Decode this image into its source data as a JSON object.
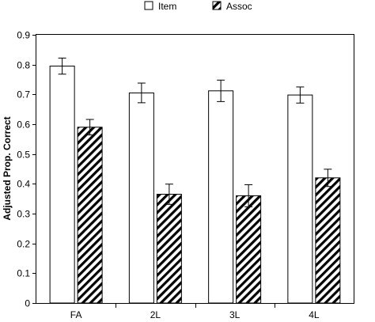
{
  "chart_data": {
    "type": "bar",
    "title": "",
    "xlabel": "",
    "ylabel": "Adjusted Prop. Correct",
    "ylim": [
      0,
      0.9
    ],
    "yticks": [
      "0",
      "0.1",
      "0.2",
      "0.3",
      "0.4",
      "0.5",
      "0.6",
      "0.7",
      "0.8",
      "0.9"
    ],
    "grid": false,
    "legend_position": "top-center",
    "categories": [
      "FA",
      "2L",
      "3L",
      "4L"
    ],
    "series": [
      {
        "name": "Item",
        "values": [
          0.795,
          0.705,
          0.712,
          0.698
        ],
        "errors": [
          0.027,
          0.033,
          0.036,
          0.027
        ],
        "fill": "#ffffff",
        "pattern": "none"
      },
      {
        "name": "Assoc",
        "values": [
          0.59,
          0.365,
          0.36,
          0.42
        ],
        "errors": [
          0.026,
          0.034,
          0.037,
          0.029
        ],
        "fill": "#ffffff",
        "pattern": "diagonal-hatch"
      }
    ],
    "colors": {
      "stroke": "#000000",
      "hatch": "#000000",
      "background": "#ffffff"
    }
  }
}
